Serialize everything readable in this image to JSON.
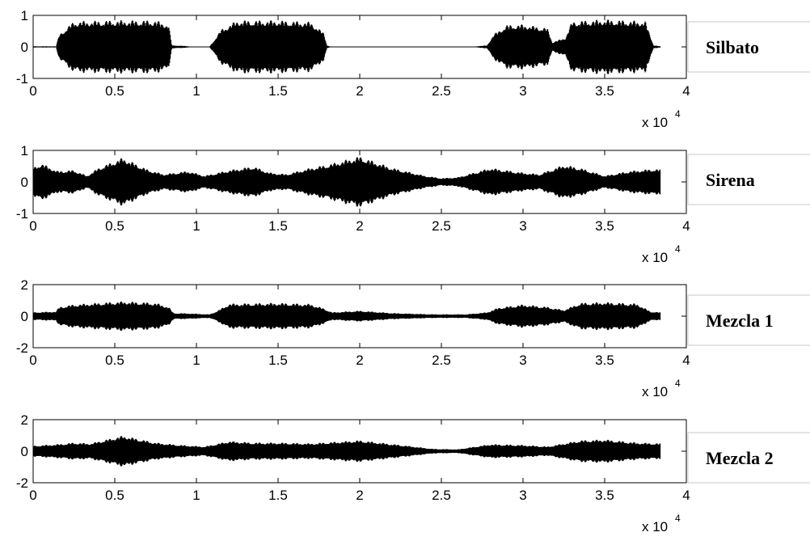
{
  "chart_data": [
    {
      "type": "line",
      "series": [
        {
          "name": "Silbato"
        }
      ],
      "xlim": [
        0,
        40000
      ],
      "ylim": [
        -1,
        1
      ],
      "x_ticks": [
        "0",
        "0.5",
        "1",
        "1.5",
        "2",
        "2.5",
        "3",
        "3.5",
        "4"
      ],
      "x_tick_values": [
        0,
        5000,
        10000,
        15000,
        20000,
        25000,
        30000,
        35000,
        40000
      ],
      "y_ticks": [
        "-1",
        "0",
        "1"
      ],
      "y_tick_values": [
        -1,
        0,
        1
      ],
      "x_multiplier": "x 10",
      "x_multiplier_exp": "4",
      "signal_end": 38400,
      "envelope": {
        "x": [
          0,
          1400,
          1600,
          2500,
          5000,
          7500,
          8300,
          8500,
          9300,
          9700,
          10800,
          11000,
          11500,
          12500,
          15000,
          17000,
          17800,
          18000,
          18200,
          27000,
          27800,
          28200,
          29000,
          30000,
          31500,
          31800,
          32600,
          33000,
          35000,
          37500,
          38000,
          38400
        ],
        "y": [
          0.02,
          0.02,
          0.4,
          0.82,
          0.85,
          0.85,
          0.72,
          0.05,
          0.03,
          0.01,
          0.01,
          0.15,
          0.55,
          0.85,
          0.85,
          0.8,
          0.45,
          0.05,
          0.01,
          0.01,
          0.05,
          0.4,
          0.7,
          0.72,
          0.6,
          0.15,
          0.3,
          0.82,
          0.88,
          0.82,
          0.05,
          0.02
        ]
      }
    },
    {
      "type": "line",
      "series": [
        {
          "name": "Sirena"
        }
      ],
      "xlim": [
        0,
        40000
      ],
      "ylim": [
        -1,
        1
      ],
      "x_ticks": [
        "0",
        "0.5",
        "1",
        "1.5",
        "2",
        "2.5",
        "3",
        "3.5",
        "4"
      ],
      "x_tick_values": [
        0,
        5000,
        10000,
        15000,
        20000,
        25000,
        30000,
        35000,
        40000
      ],
      "y_ticks": [
        "-1",
        "0",
        "1"
      ],
      "y_tick_values": [
        -1,
        0,
        1
      ],
      "x_multiplier": "x 10",
      "x_multiplier_exp": "4",
      "signal_end": 38400,
      "envelope": {
        "x": [
          0,
          500,
          1500,
          2500,
          3300,
          4000,
          5500,
          7000,
          8000,
          9500,
          10500,
          12000,
          13500,
          14500,
          15500,
          17000,
          18000,
          20000,
          22000,
          24000,
          25000,
          26000,
          28000,
          30000,
          31000,
          32500,
          33500,
          35000,
          36500,
          38000,
          38400
        ],
        "y": [
          0.45,
          0.6,
          0.35,
          0.38,
          0.2,
          0.45,
          0.78,
          0.4,
          0.25,
          0.35,
          0.2,
          0.38,
          0.5,
          0.3,
          0.25,
          0.45,
          0.55,
          0.82,
          0.45,
          0.2,
          0.12,
          0.15,
          0.45,
          0.3,
          0.25,
          0.55,
          0.45,
          0.2,
          0.35,
          0.42,
          0.4
        ]
      }
    },
    {
      "type": "line",
      "series": [
        {
          "name": "Mezcla 1"
        }
      ],
      "xlim": [
        0,
        40000
      ],
      "ylim": [
        -2,
        2
      ],
      "x_ticks": [
        "0",
        "0.5",
        "1",
        "1.5",
        "2",
        "2.5",
        "3",
        "3.5",
        "4"
      ],
      "x_tick_values": [
        0,
        5000,
        10000,
        15000,
        20000,
        25000,
        30000,
        35000,
        40000
      ],
      "y_ticks": [
        "-2",
        "0",
        "2"
      ],
      "y_tick_values": [
        -2,
        0,
        2
      ],
      "x_multiplier": "x 10",
      "x_multiplier_exp": "4",
      "signal_end": 38400,
      "envelope": {
        "x": [
          0,
          1400,
          1600,
          2500,
          5500,
          7500,
          8300,
          8600,
          9500,
          10800,
          11300,
          12000,
          15000,
          17000,
          17800,
          18300,
          20000,
          22000,
          24500,
          26500,
          27800,
          28500,
          30000,
          31500,
          32500,
          33500,
          35000,
          37000,
          37800,
          38400
        ],
        "y": [
          0.25,
          0.3,
          0.6,
          0.75,
          0.95,
          0.85,
          0.6,
          0.2,
          0.18,
          0.12,
          0.35,
          0.8,
          0.85,
          0.78,
          0.5,
          0.25,
          0.35,
          0.2,
          0.12,
          0.12,
          0.25,
          0.55,
          0.75,
          0.6,
          0.4,
          0.85,
          0.9,
          0.8,
          0.3,
          0.25
        ]
      }
    },
    {
      "type": "line",
      "series": [
        {
          "name": "Mezcla 2"
        }
      ],
      "xlim": [
        0,
        40000
      ],
      "ylim": [
        -2,
        2
      ],
      "x_ticks": [
        "0",
        "0.5",
        "1",
        "1.5",
        "2",
        "2.5",
        "3",
        "3.5",
        "4"
      ],
      "x_tick_values": [
        0,
        5000,
        10000,
        15000,
        20000,
        25000,
        30000,
        35000,
        40000
      ],
      "y_ticks": [
        "-2",
        "0",
        "2"
      ],
      "y_tick_values": [
        -2,
        0,
        2
      ],
      "x_multiplier": "x 10",
      "x_multiplier_exp": "4",
      "signal_end": 38400,
      "envelope": {
        "x": [
          0,
          1500,
          2500,
          3500,
          5500,
          7500,
          9000,
          10500,
          12000,
          13500,
          15000,
          17000,
          20000,
          22500,
          24500,
          26000,
          28000,
          30000,
          31500,
          33500,
          35000,
          37000,
          38400
        ],
        "y": [
          0.35,
          0.45,
          0.55,
          0.5,
          1.0,
          0.55,
          0.4,
          0.3,
          0.65,
          0.55,
          0.55,
          0.5,
          0.7,
          0.4,
          0.15,
          0.12,
          0.45,
          0.4,
          0.3,
          0.7,
          0.75,
          0.55,
          0.5
        ]
      }
    }
  ]
}
